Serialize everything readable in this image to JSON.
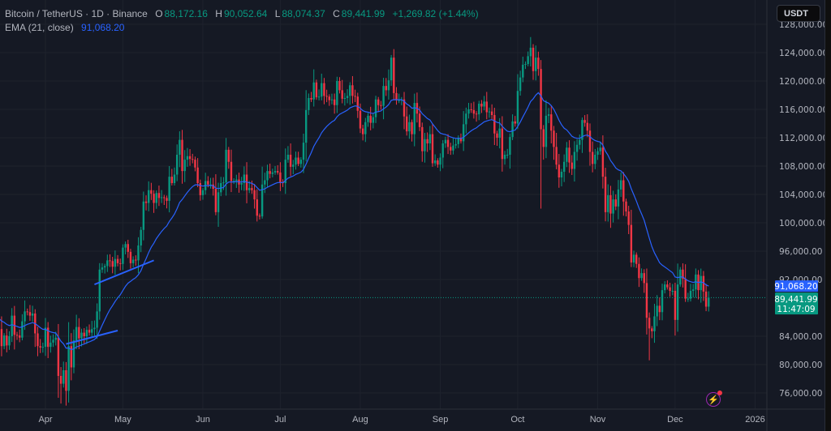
{
  "header": {
    "symbol": "Bitcoin / TetherUS · 1D · Binance",
    "open_label": "O",
    "open": "88,172.16",
    "high_label": "H",
    "high": "90,052.64",
    "low_label": "L",
    "low": "88,074.37",
    "close_label": "C",
    "close": "89,441.99",
    "change": "+1,269.82 (+1.44%)",
    "ema_label": "EMA (21, close)",
    "ema_value": "91,068.20"
  },
  "currency_button": "USDT",
  "colors": {
    "up": "#089981",
    "down": "#f23645",
    "ema": "#2962ff",
    "trendline": "#2962ff",
    "background": "#151924",
    "grid": "#1e222d"
  },
  "icons": {
    "alert": "lightning-bolt-icon"
  },
  "price_labels": {
    "ema": "91,068.20",
    "last": "89,441.99",
    "countdown": "11:47:09"
  },
  "chart_data": {
    "type": "candlestick",
    "title": "",
    "ylim": [
      73000,
      127500
    ],
    "y_ticks": [
      {
        "value": 76000,
        "label": "76,000.00"
      },
      {
        "value": 80000,
        "label": "80,000.00"
      },
      {
        "value": 84000,
        "label": "84,000.00"
      },
      {
        "value": 92000,
        "label": "92,000.00"
      },
      {
        "value": 96000,
        "label": "96,000.00"
      },
      {
        "value": 100000,
        "label": "100,000.00"
      },
      {
        "value": 104000,
        "label": "104,000.00"
      },
      {
        "value": 108000,
        "label": "108,000.00"
      },
      {
        "value": 112000,
        "label": "112,000.00"
      },
      {
        "value": 116000,
        "label": "116,000.00"
      },
      {
        "value": 120000,
        "label": "120,000.00"
      },
      {
        "value": 124000,
        "label": "124,000.00"
      },
      {
        "value": 128000,
        "label": "128,000.00"
      }
    ],
    "x_ticks": [
      {
        "date": "2025-04-01",
        "label": "Apr"
      },
      {
        "date": "2025-05-01",
        "label": "May"
      },
      {
        "date": "2025-06-01",
        "label": "Jun"
      },
      {
        "date": "2025-07-01",
        "label": "Jul"
      },
      {
        "date": "2025-08-01",
        "label": "Aug"
      },
      {
        "date": "2025-09-01",
        "label": "Sep"
      },
      {
        "date": "2025-10-01",
        "label": "Oct"
      },
      {
        "date": "2025-11-01",
        "label": "Nov"
      },
      {
        "date": "2025-12-01",
        "label": "Dec"
      },
      {
        "date": "2026-01-01",
        "label": "2026"
      }
    ],
    "close_unit": "thousand USDT",
    "daily_closes": [
      {
        "month": "2025-03",
        "first_day": 14,
        "values": [
          85.0,
          82.6,
          84.1,
          82.7,
          84.0,
          86.9,
          84.2,
          84.1,
          83.8,
          86.1,
          87.5,
          87.4,
          86.9,
          87.2,
          84.4,
          82.6,
          82.4,
          82.5
        ]
      },
      {
        "month": "2025-04",
        "first_day": 1,
        "values": [
          85.2,
          82.5,
          83.1,
          83.5,
          83.8,
          78.4,
          77.3,
          79.2,
          76.3,
          82.6,
          79.6,
          83.4,
          85.3,
          83.7,
          84.5,
          84.0,
          84.9,
          84.5,
          85.0,
          85.2,
          87.5,
          93.4,
          93.7,
          93.9,
          94.7,
          94.6,
          93.8,
          94.9,
          94.3,
          94.2
        ]
      },
      {
        "month": "2025-05",
        "first_day": 1,
        "values": [
          96.5,
          97.0,
          95.9,
          94.3,
          94.8,
          94.7,
          96.8,
          99.0,
          103.0,
          102.8,
          104.6,
          104.1,
          102.8,
          104.2,
          103.5,
          103.6,
          103.5,
          103.1,
          106.5,
          105.6,
          106.8,
          109.6,
          111.7,
          107.3,
          108.9,
          109.4,
          109.0,
          108.9,
          107.8,
          105.6,
          103.9
        ]
      },
      {
        "month": "2025-06",
        "first_day": 1,
        "values": [
          104.6,
          105.9,
          105.4,
          105.4,
          104.8,
          101.5,
          104.3,
          105.6,
          105.7,
          110.3,
          108.6,
          105.9,
          105.9,
          106.1,
          105.4,
          105.6,
          106.8,
          104.6,
          104.9,
          104.6,
          103.3,
          101.0,
          100.9,
          105.4,
          106.0,
          107.3,
          106.9,
          107.1,
          107.3,
          107.1
        ]
      },
      {
        "month": "2025-07",
        "first_day": 1,
        "values": [
          105.7,
          105.6,
          108.9,
          109.6,
          107.9,
          108.2,
          109.2,
          108.3,
          108.9,
          111.3,
          115.9,
          117.6,
          117.4,
          119.8,
          117.7,
          117.8,
          119.7,
          117.9,
          117.8,
          117.3,
          117.4,
          116.6,
          120.0,
          118.7,
          117.5,
          117.6,
          117.9,
          119.4,
          117.9,
          117.8,
          115.8
        ]
      },
      {
        "month": "2025-08",
        "first_day": 1,
        "values": [
          113.3,
          112.5,
          114.2,
          115.1,
          114.1,
          114.9,
          117.4,
          116.6,
          116.5,
          119.3,
          118.7,
          120.1,
          123.3,
          118.3,
          117.3,
          117.3,
          117.4,
          115.0,
          112.9,
          114.2,
          112.5,
          116.9,
          115.4,
          113.5,
          110.1,
          111.8,
          111.2,
          112.5,
          108.4,
          108.8,
          108.2
        ]
      },
      {
        "month": "2025-09",
        "first_day": 1,
        "values": [
          109.2,
          111.2,
          111.7,
          110.7,
          110.2,
          110.9,
          111.1,
          112.0,
          111.5,
          113.9,
          115.4,
          116.0,
          115.9,
          115.4,
          115.3,
          116.8,
          116.4,
          117.1,
          115.6,
          115.7,
          115.2,
          112.6,
          112.0,
          113.3,
          109.0,
          109.6,
          109.6,
          112.1,
          114.3,
          114.0
        ]
      },
      {
        "month": "2025-10",
        "first_day": 1,
        "values": [
          118.6,
          120.5,
          122.3,
          122.4,
          123.5,
          124.7,
          121.4,
          123.3,
          121.7,
          113.2,
          110.7,
          115.1,
          115.3,
          113.0,
          110.7,
          108.2,
          106.4,
          107.2,
          108.6,
          110.6,
          108.5,
          107.6,
          110.0,
          111.0,
          111.7,
          114.5,
          114.1,
          113.0,
          110.0,
          108.3,
          109.6
        ]
      },
      {
        "month": "2025-11",
        "first_day": 1,
        "values": [
          110.1,
          110.6,
          106.5,
          101.5,
          103.9,
          101.3,
          103.3,
          102.3,
          104.7,
          106.0,
          103.0,
          101.6,
          99.7,
          94.4,
          95.5,
          94.2,
          92.2,
          92.9,
          91.5,
          86.6,
          85.1,
          84.7,
          86.8,
          88.3,
          87.4,
          90.5,
          91.3,
          90.9,
          90.4,
          90.4
        ]
      },
      {
        "month": "2025-12",
        "first_day": 1,
        "values": [
          86.3,
          91.3,
          93.4,
          92.1,
          89.3,
          89.3,
          90.4,
          90.6,
          92.7,
          90.5,
          92.5,
          90.3,
          88.17,
          89.44
        ]
      }
    ],
    "wick_extremes": [
      {
        "date": "2025-04-07",
        "low": 74.5
      },
      {
        "date": "2025-08-14",
        "high": 124.5
      },
      {
        "date": "2025-10-06",
        "high": 126.2
      },
      {
        "date": "2025-10-10",
        "low": 102.0
      },
      {
        "date": "2025-11-21",
        "low": 80.6
      }
    ],
    "ema_period": 21,
    "trendlines": [
      {
        "from": {
          "date": "2025-04-20",
          "price": 91300
        },
        "to": {
          "date": "2025-05-13",
          "price": 94700
        }
      },
      {
        "from": {
          "date": "2025-04-09",
          "price": 82900
        },
        "to": {
          "date": "2025-04-29",
          "price": 84800
        }
      }
    ],
    "last_price": 89441.99,
    "ema_last": 91068.2,
    "grid": true
  }
}
